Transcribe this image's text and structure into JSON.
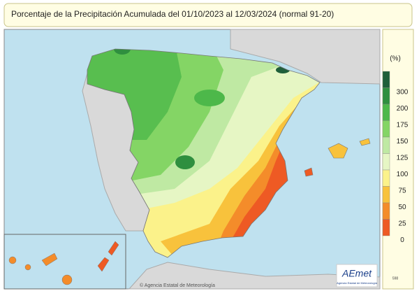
{
  "header": {
    "title": "Porcentaje de la Precipitación Acumulada  del 01/10/2023 al 12/03/2024  (normal 91-20)"
  },
  "legend": {
    "unit": "(%)",
    "items": [
      {
        "label": "300",
        "color": "#1f5f3a"
      },
      {
        "label": "200",
        "color": "#2f8f3f"
      },
      {
        "label": "175",
        "color": "#4db84a"
      },
      {
        "label": "150",
        "color": "#84d565"
      },
      {
        "label": "125",
        "color": "#bfe9a3"
      },
      {
        "label": "100",
        "color": "#e6f6c4"
      },
      {
        "label": "75",
        "color": "#fbf28a"
      },
      {
        "label": "50",
        "color": "#f8c23c"
      },
      {
        "label": "25",
        "color": "#f48c2a"
      },
      {
        "label": "0",
        "color": "#ee5a24"
      }
    ]
  },
  "footer": {
    "copyright": "© Agencia Estatal de Meteorología",
    "logo": "AEmet",
    "logo_sub": "Agencia Estatal de Meteorología",
    "code": "598"
  }
}
